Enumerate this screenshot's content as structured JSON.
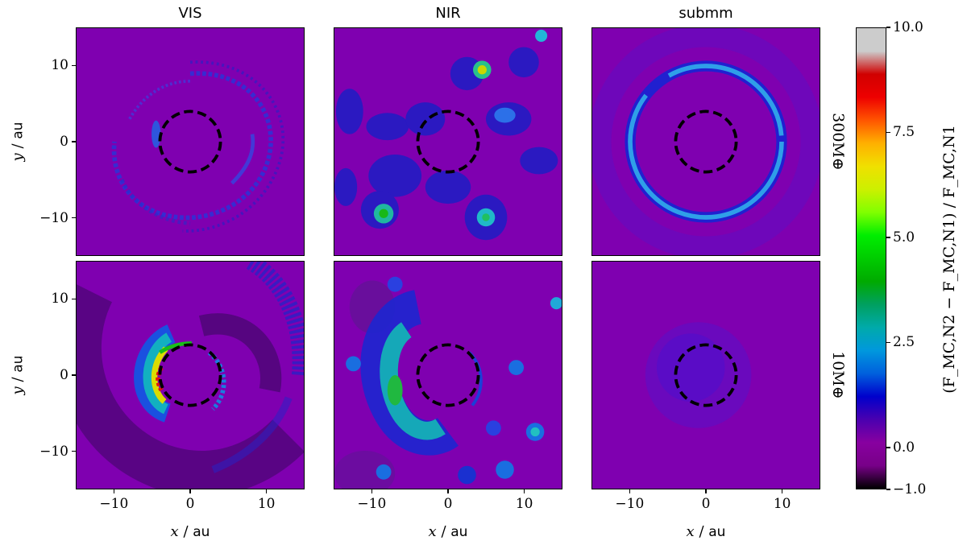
{
  "chart_data": {
    "type": "heatmap",
    "columns": [
      "VIS",
      "NIR",
      "submm"
    ],
    "rows": [
      "300M⊕",
      "10M⊕"
    ],
    "xlabel": {
      "var": "x",
      "unit": "au"
    },
    "ylabel": {
      "var": "y",
      "unit": "au"
    },
    "xlim": [
      -15,
      15
    ],
    "ylim": [
      -15,
      15
    ],
    "xticks": [
      -10,
      0,
      10
    ],
    "yticks": [
      10,
      0,
      -10
    ],
    "inner_circle_radius_au": 4,
    "colorbar": {
      "label": "(F_MC,N2 − F_MC,N1) / F_MC,N1",
      "range": [
        -1.0,
        10.0
      ],
      "ticks": [
        "−1.0",
        "0.0",
        "2.5",
        "5.0",
        "7.5",
        "10.0"
      ],
      "tick_values": [
        -1.0,
        0.0,
        2.5,
        5.0,
        7.5,
        10.0
      ],
      "colormap": "nipy_spectral"
    },
    "background_value": 0.0,
    "background_color": "#7f00b0"
  },
  "labels": {
    "col_vis": "VIS",
    "col_nir": "NIR",
    "col_submm": "submm",
    "row_top": "300M⊕",
    "row_bottom": "10M⊕",
    "x_var": "x",
    "x_unit": "au",
    "y_var": "y",
    "y_unit": "au",
    "slash": "/",
    "cb_label": "(F_MC,N2 − F_MC,N1) / F_MC,N1"
  }
}
